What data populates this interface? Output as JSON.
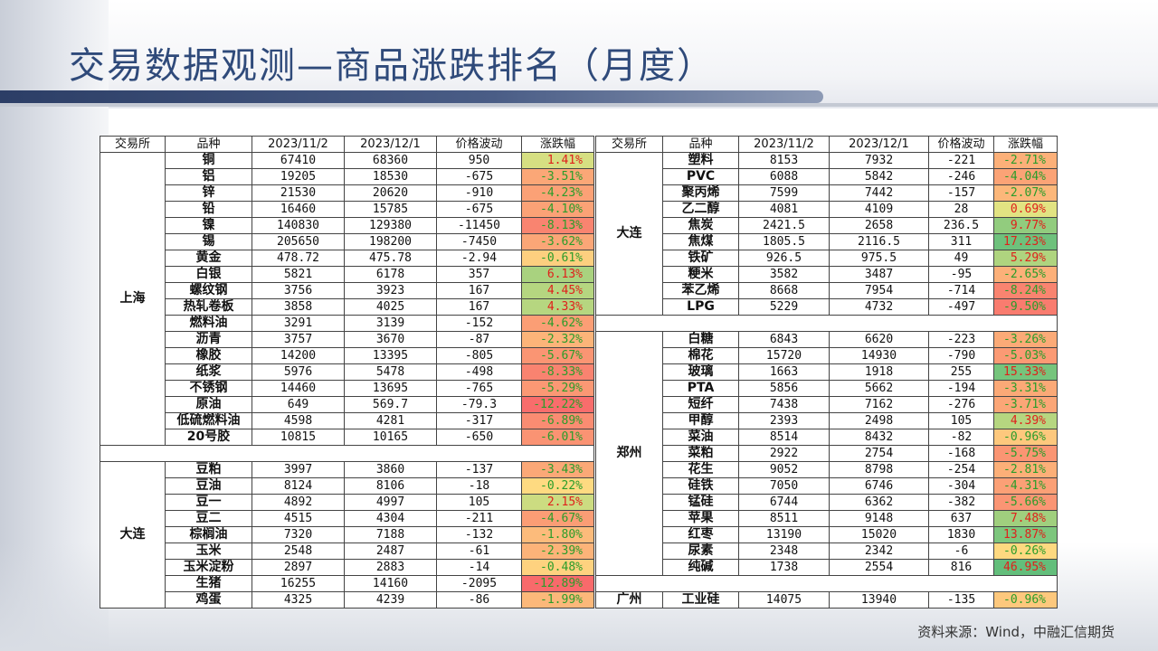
{
  "title": "交易数据观测—商品涨跌排名（月度）",
  "source": "资料来源：Wind，中融汇信期货",
  "headers": [
    "交易所",
    "品种",
    "2023/11/2",
    "2023/12/1",
    "价格波动",
    "涨跌幅"
  ],
  "left_groups": [
    {
      "exchange": "上海",
      "rows": [
        [
          "铜",
          "67410",
          "68360",
          "950",
          "1.41%"
        ],
        [
          "铝",
          "19205",
          "18530",
          "-675",
          "-3.51%"
        ],
        [
          "锌",
          "21530",
          "20620",
          "-910",
          "-4.23%"
        ],
        [
          "铅",
          "16460",
          "15785",
          "-675",
          "-4.10%"
        ],
        [
          "镍",
          "140830",
          "129380",
          "-11450",
          "-8.13%"
        ],
        [
          "锡",
          "205650",
          "198200",
          "-7450",
          "-3.62%"
        ],
        [
          "黄金",
          "478.72",
          "475.78",
          "-2.94",
          "-0.61%"
        ],
        [
          "白银",
          "5821",
          "6178",
          "357",
          "6.13%"
        ],
        [
          "螺纹钢",
          "3756",
          "3923",
          "167",
          "4.45%"
        ],
        [
          "热轧卷板",
          "3858",
          "4025",
          "167",
          "4.33%"
        ],
        [
          "燃料油",
          "3291",
          "3139",
          "-152",
          "-4.62%"
        ],
        [
          "沥青",
          "3757",
          "3670",
          "-87",
          "-2.32%"
        ],
        [
          "橡胶",
          "14200",
          "13395",
          "-805",
          "-5.67%"
        ],
        [
          "纸浆",
          "5976",
          "5478",
          "-498",
          "-8.33%"
        ],
        [
          "不锈钢",
          "14460",
          "13695",
          "-765",
          "-5.29%"
        ],
        [
          "原油",
          "649",
          "569.7",
          "-79.3",
          "-12.22%"
        ],
        [
          "低硫燃料油",
          "4598",
          "4281",
          "-317",
          "-6.89%"
        ],
        [
          "20号胶",
          "10815",
          "10165",
          "-650",
          "-6.01%"
        ]
      ]
    },
    {
      "exchange": "大连",
      "rows": [
        [
          "豆粕",
          "3997",
          "3860",
          "-137",
          "-3.43%"
        ],
        [
          "豆油",
          "8124",
          "8106",
          "-18",
          "-0.22%"
        ],
        [
          "豆一",
          "4892",
          "4997",
          "105",
          "2.15%"
        ],
        [
          "豆二",
          "4515",
          "4304",
          "-211",
          "-4.67%"
        ],
        [
          "棕榈油",
          "7320",
          "7188",
          "-132",
          "-1.80%"
        ],
        [
          "玉米",
          "2548",
          "2487",
          "-61",
          "-2.39%"
        ],
        [
          "玉米淀粉",
          "2897",
          "2883",
          "-14",
          "-0.48%"
        ],
        [
          "生猪",
          "16255",
          "14160",
          "-2095",
          "-12.89%"
        ],
        [
          "鸡蛋",
          "4325",
          "4239",
          "-86",
          "-1.99%"
        ]
      ]
    }
  ],
  "right_groups": [
    {
      "exchange": "大连",
      "rows": [
        [
          "塑料",
          "8153",
          "7932",
          "-221",
          "-2.71%"
        ],
        [
          "PVC",
          "6088",
          "5842",
          "-246",
          "-4.04%"
        ],
        [
          "聚丙烯",
          "7599",
          "7442",
          "-157",
          "-2.07%"
        ],
        [
          "乙二醇",
          "4081",
          "4109",
          "28",
          "0.69%"
        ],
        [
          "焦炭",
          "2421.5",
          "2658",
          "236.5",
          "9.77%"
        ],
        [
          "焦煤",
          "1805.5",
          "2116.5",
          "311",
          "17.23%"
        ],
        [
          "铁矿",
          "926.5",
          "975.5",
          "49",
          "5.29%"
        ],
        [
          "粳米",
          "3582",
          "3487",
          "-95",
          "-2.65%"
        ],
        [
          "苯乙烯",
          "8668",
          "7954",
          "-714",
          "-8.24%"
        ],
        [
          "LPG",
          "5229",
          "4732",
          "-497",
          "-9.50%"
        ]
      ]
    },
    {
      "exchange": "郑州",
      "rows": [
        [
          "白糖",
          "6843",
          "6620",
          "-223",
          "-3.26%"
        ],
        [
          "棉花",
          "15720",
          "14930",
          "-790",
          "-5.03%"
        ],
        [
          "玻璃",
          "1663",
          "1918",
          "255",
          "15.33%"
        ],
        [
          "PTA",
          "5856",
          "5662",
          "-194",
          "-3.31%"
        ],
        [
          "短纤",
          "7438",
          "7162",
          "-276",
          "-3.71%"
        ],
        [
          "甲醇",
          "2393",
          "2498",
          "105",
          "4.39%"
        ],
        [
          "菜油",
          "8514",
          "8432",
          "-82",
          "-0.96%"
        ],
        [
          "菜粕",
          "2922",
          "2754",
          "-168",
          "-5.75%"
        ],
        [
          "花生",
          "9052",
          "8798",
          "-254",
          "-2.81%"
        ],
        [
          "硅铁",
          "7050",
          "6746",
          "-304",
          "-4.31%"
        ],
        [
          "锰硅",
          "6744",
          "6362",
          "-382",
          "-5.66%"
        ],
        [
          "苹果",
          "8511",
          "9148",
          "637",
          "7.48%"
        ],
        [
          "红枣",
          "13190",
          "15020",
          "1830",
          "13.87%"
        ],
        [
          "尿素",
          "2348",
          "2342",
          "-6",
          "-0.26%"
        ],
        [
          "纯碱",
          "1738",
          "2554",
          "816",
          "46.95%"
        ]
      ]
    },
    {
      "exchange": "广州",
      "rows": [
        [
          "工业硅",
          "14075",
          "13940",
          "-135",
          "-0.96%"
        ]
      ]
    }
  ],
  "colors": {
    "up_text": "#e0201b",
    "down_text": "#2a9d2a",
    "yellow": "#ffeb84",
    "red": "#f8696b",
    "green": "#63be7b"
  }
}
